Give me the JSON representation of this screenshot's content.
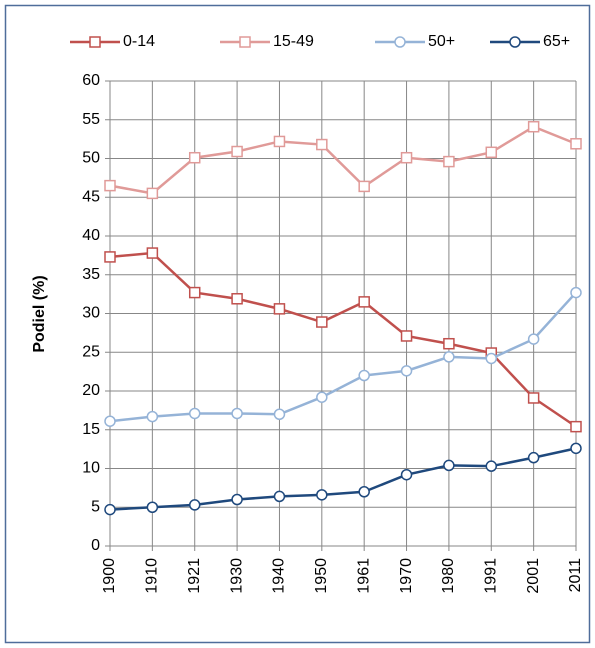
{
  "chart_data": {
    "type": "line",
    "y_label": "Podiel (%)",
    "categories": [
      "1900",
      "1910",
      "1921",
      "1930",
      "1940",
      "1950",
      "1961",
      "1970",
      "1980",
      "1991",
      "2001",
      "2011"
    ],
    "series": [
      {
        "name": "0-14",
        "color": "#c0504d",
        "marker": "square",
        "values": [
          37.3,
          37.8,
          32.7,
          31.9,
          30.6,
          28.9,
          31.5,
          27.1,
          26.1,
          24.9,
          19.1,
          15.4
        ]
      },
      {
        "name": "15-49",
        "color": "#e09a98",
        "marker": "square",
        "values": [
          46.5,
          45.5,
          50.1,
          50.9,
          52.2,
          51.8,
          46.4,
          50.1,
          49.6,
          50.8,
          54.1,
          51.9
        ]
      },
      {
        "name": "50+",
        "color": "#95b3d7",
        "marker": "circle",
        "values": [
          16.1,
          16.7,
          17.1,
          17.1,
          17.0,
          19.2,
          22.0,
          22.6,
          24.4,
          24.2,
          26.7,
          32.7
        ]
      },
      {
        "name": "65+",
        "color": "#1f497d",
        "marker": "circle",
        "values": [
          4.7,
          5.0,
          5.3,
          6.0,
          6.4,
          6.6,
          7.0,
          9.2,
          10.4,
          10.3,
          11.4,
          12.6
        ]
      }
    ],
    "ylim": [
      0,
      60
    ],
    "yticks": [
      0,
      5,
      10,
      15,
      20,
      25,
      30,
      35,
      40,
      45,
      50,
      55,
      60
    ],
    "grid": true,
    "legend": "top"
  }
}
